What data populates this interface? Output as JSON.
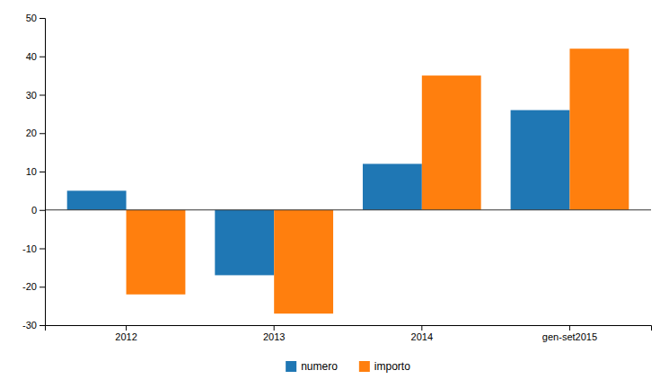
{
  "chart_data": {
    "type": "bar",
    "categories": [
      "2012",
      "2013",
      "2014",
      "gen-set2015"
    ],
    "series": [
      {
        "name": "numero",
        "values": [
          5,
          -17,
          12,
          26
        ]
      },
      {
        "name": "importo",
        "values": [
          -22,
          -27,
          35,
          42
        ]
      }
    ],
    "ylim": [
      -30,
      50
    ],
    "yticks": [
      -30,
      -20,
      -10,
      0,
      10,
      20,
      30,
      40,
      50
    ],
    "grid": false,
    "legend": "bottom"
  }
}
